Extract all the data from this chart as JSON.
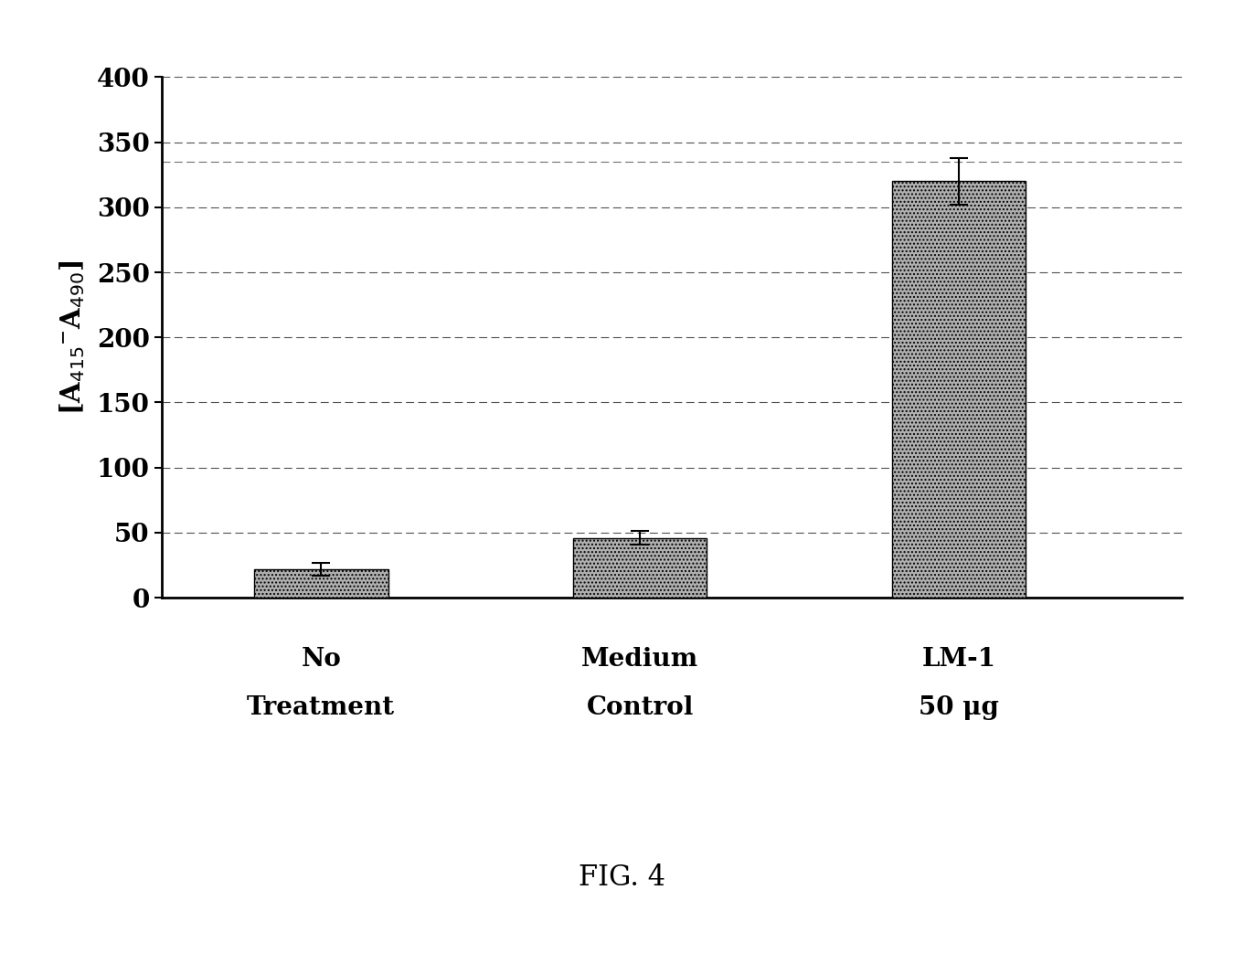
{
  "categories": [
    "No\nTreatment",
    "Medium\nControl",
    "LM-1\n50 μg"
  ],
  "values": [
    22,
    46,
    320
  ],
  "errors": [
    5,
    5,
    18
  ],
  "bar_color": "#b0b0b0",
  "ylabel": "[A$_{415}$$^{-}$A$_{490}$]",
  "ylim": [
    0,
    400
  ],
  "yticks": [
    0,
    50,
    100,
    150,
    200,
    250,
    300,
    350,
    400
  ],
  "title": "FIG. 4",
  "background_color": "#ffffff",
  "figsize": [
    13.61,
    10.55
  ],
  "dpi": 100,
  "bar_width": 0.42,
  "x_positions": [
    0.5,
    1.5,
    2.5
  ],
  "xlim": [
    0,
    3.2
  ]
}
